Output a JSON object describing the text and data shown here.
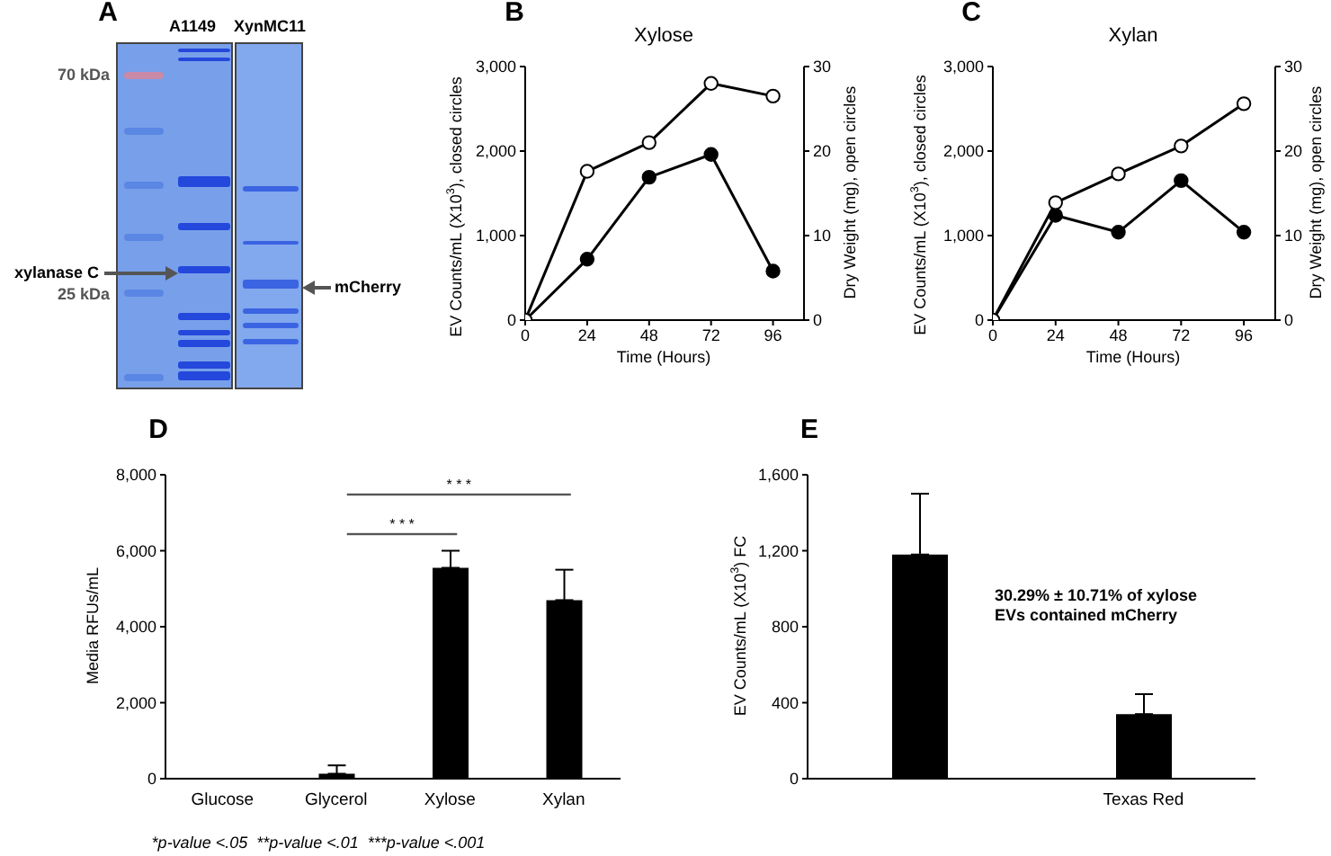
{
  "chart_data": [
    {
      "type": "other",
      "annotations": [
        "A",
        "A1149",
        "XynMC11",
        "70 kDa",
        "xylanase C",
        "25 kDa",
        "mCherry"
      ]
    },
    {
      "type": "line",
      "title": "Xylose",
      "xlabel": "Time (Hours)",
      "ylabel": "EV Counts/mL (X10$^{3}$), closed circles",
      "y2label": "Dry Weight (mg), open circles",
      "annotations": [
        "B"
      ],
      "x": [
        0,
        24,
        48,
        72,
        96
      ],
      "series": [
        {
          "color": "#000000",
          "values": [
            0,
            720,
            1690,
            1960,
            580
          ]
        },
        {
          "color": "#000000",
          "axis": "y2",
          "values": [
            0,
            17.6,
            21,
            28,
            26.5
          ]
        }
      ],
      "xlim": [
        0,
        108
      ],
      "xticks": [
        0,
        24,
        48,
        72,
        96
      ],
      "ylim": [
        0,
        3000
      ],
      "yticks": [
        0,
        {
          "value": 1000,
          "label": "1,000"
        },
        {
          "value": 2000,
          "label": "2,000"
        },
        {
          "value": 3000,
          "label": "3,000"
        }
      ],
      "y2lim": [
        0,
        30
      ],
      "y2ticks": [
        0,
        10,
        20,
        30
      ],
      "marker": "circle"
    },
    {
      "type": "line",
      "title": "Xylan",
      "xlabel": "Time (Hours)",
      "ylabel": "EV Counts/mL (X10$^{3}$), closed circles",
      "y2label": "Dry Weight (mg), open circles",
      "annotations": [
        "C"
      ],
      "x": [
        0,
        24,
        48,
        72,
        96
      ],
      "series": [
        {
          "color": "#000000",
          "values": [
            0,
            1240,
            1040,
            1650,
            1040
          ]
        },
        {
          "color": "#000000",
          "axis": "y2",
          "values": [
            0,
            13.9,
            17.3,
            20.6,
            25.6
          ]
        }
      ],
      "xlim": [
        0,
        108
      ],
      "xticks": [
        0,
        24,
        48,
        72,
        96
      ],
      "ylim": [
        0,
        3000
      ],
      "yticks": [
        0,
        {
          "value": 1000,
          "label": "1,000"
        },
        {
          "value": 2000,
          "label": "2,000"
        },
        {
          "value": 3000,
          "label": "3,000"
        }
      ],
      "y2lim": [
        0,
        30
      ],
      "y2ticks": [
        0,
        10,
        20,
        30
      ],
      "marker": "circle"
    },
    {
      "type": "bar",
      "ylabel": "Media RFUs/mL",
      "annotations": [
        "D",
        "* * *",
        "* * *",
        "*p-value <.05  **p-value <.01  ***p-value <.001"
      ],
      "categories": [
        "Glucose",
        "Glycerol",
        "Xylose",
        "Xylan"
      ],
      "values": [
        0,
        130,
        5550,
        4700
      ],
      "errors": [
        null,
        [
          130,
          350
        ],
        [
          5550,
          6000
        ],
        [
          4700,
          5500
        ]
      ],
      "color": "#000000",
      "ylim": [
        0,
        8000
      ],
      "yticks": [
        0,
        {
          "value": 2000,
          "label": "2,000"
        },
        {
          "value": 4000,
          "label": "4,000"
        },
        {
          "value": 6000,
          "label": "6,000"
        },
        {
          "value": 8000,
          "label": "8,000"
        }
      ]
    },
    {
      "type": "bar",
      "ylabel": "EV Counts/mL (X10$^{3}$) FC",
      "annotations": [
        "E",
        "30.29% ± 10.71% of xylose EVs contained mCherry"
      ],
      "categories": [
        null,
        "Texas Red"
      ],
      "values": [
        1180,
        340
      ],
      "errors": [
        [
          1180,
          1500
        ],
        [
          340,
          445
        ]
      ],
      "color": "#000000",
      "ylim": [
        0,
        1600
      ],
      "yticks": [
        0,
        400,
        800,
        {
          "value": 1200,
          "label": "1,200"
        },
        {
          "value": 1600,
          "label": "1,600"
        }
      ]
    }
  ]
}
